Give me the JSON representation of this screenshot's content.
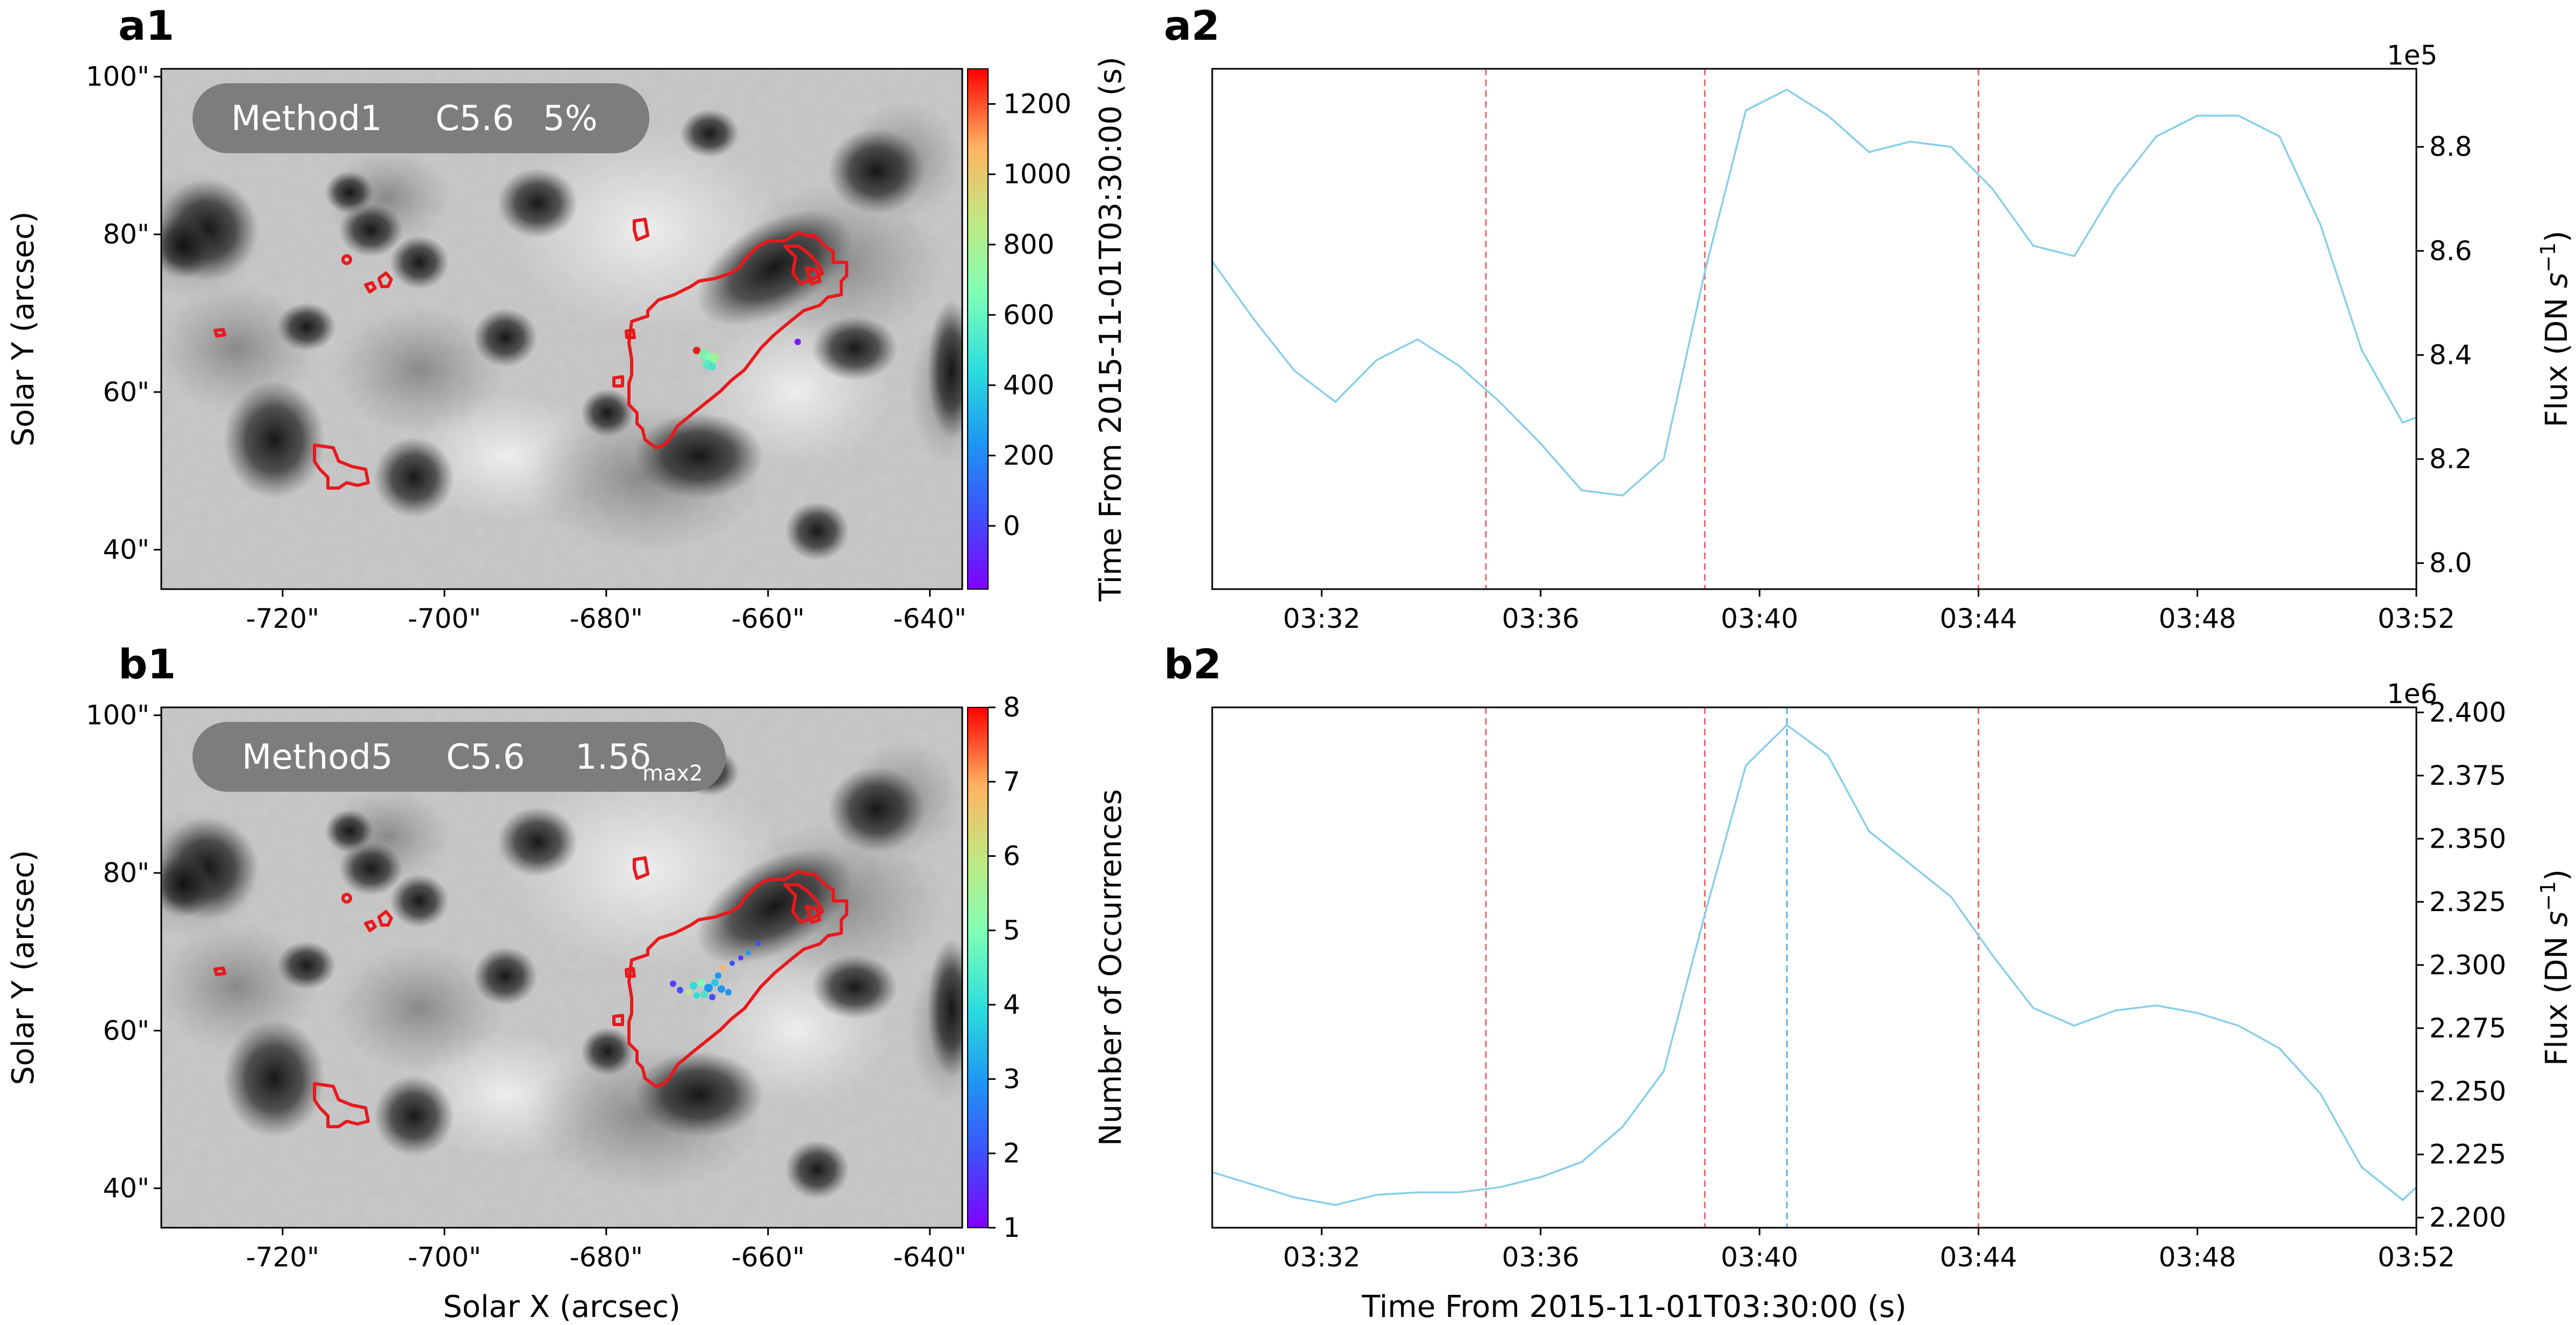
{
  "colors": {
    "curve": "#87ceeb",
    "vline_red": "#e8686a",
    "vline_blue": "#5aaee3",
    "contour": "#e8191d",
    "badge": "#7d7d7d"
  },
  "chart_data": [
    {
      "panel": "a1",
      "type": "image",
      "title_badge": {
        "method": "Method1",
        "flare": "C5.6",
        "threshold": "5%"
      },
      "xlabel": "",
      "ylabel": "Solar Y (arcsec)",
      "xticks": [
        "-720\"",
        "-700\"",
        "-680\"",
        "-660\"",
        "-640\""
      ],
      "yticks": [
        "40\"",
        "60\"",
        "80\"",
        "100\""
      ],
      "xlim": [
        -735,
        -636
      ],
      "ylim": [
        35,
        101
      ],
      "colorbar": {
        "label": "Time From 2015-11-01T03:30:00 (s)",
        "ticks": [
          "0",
          "200",
          "400",
          "600",
          "800",
          "1000",
          "1200"
        ],
        "range": [
          -180,
          1300
        ]
      }
    },
    {
      "panel": "a2",
      "type": "line",
      "xlabel": "",
      "ylabel": "Flux (DN s⁻¹)",
      "exponent": "1e5",
      "x_ticks": [
        "03:32",
        "03:36",
        "03:40",
        "03:44",
        "03:48",
        "03:52"
      ],
      "y_ticks": [
        "8.0",
        "8.2",
        "8.4",
        "8.6",
        "8.8"
      ],
      "xlim_min": [
        0,
        22
      ],
      "ylim": [
        7.95,
        8.95
      ],
      "vlines_red_min": [
        5,
        9,
        14
      ],
      "series": [
        {
          "name": "flux",
          "x_min": [
            0,
            0.75,
            1.5,
            2.25,
            3,
            3.75,
            4.5,
            5.25,
            6,
            6.75,
            7.5,
            8.25,
            9,
            9.75,
            10.5,
            11.25,
            12,
            12.75,
            13.5,
            14.25,
            15,
            15.75,
            16.5,
            17.25,
            18,
            18.75,
            19.5,
            20.25,
            21,
            21.75,
            22
          ],
          "y": [
            8.58,
            8.47,
            8.37,
            8.31,
            8.39,
            8.43,
            8.38,
            8.31,
            8.23,
            8.14,
            8.13,
            8.2,
            8.56,
            8.87,
            8.91,
            8.86,
            8.79,
            8.81,
            8.8,
            8.72,
            8.61,
            8.59,
            8.72,
            8.82,
            8.86,
            8.86,
            8.82,
            8.65,
            8.41,
            8.27,
            8.28
          ]
        }
      ]
    },
    {
      "panel": "b1",
      "type": "image",
      "title_badge": {
        "method": "Method5",
        "flare": "C5.6",
        "threshold_prefix": "1.5δ",
        "threshold_sub": "max2"
      },
      "xlabel": "Solar X (arcsec)",
      "ylabel": "Solar Y (arcsec)",
      "xticks": [
        "-720\"",
        "-700\"",
        "-680\"",
        "-660\"",
        "-640\""
      ],
      "yticks": [
        "40\"",
        "60\"",
        "80\"",
        "100\""
      ],
      "xlim": [
        -735,
        -636
      ],
      "ylim": [
        35,
        101
      ],
      "colorbar": {
        "label": "Number of Occurrences",
        "ticks": [
          "1",
          "2",
          "3",
          "4",
          "5",
          "6",
          "7",
          "8"
        ],
        "range": [
          1,
          8
        ]
      }
    },
    {
      "panel": "b2",
      "type": "line",
      "xlabel": "Time From 2015-11-01T03:30:00 (s)",
      "ylabel": "Flux (DN s⁻¹)",
      "exponent": "1e6",
      "x_ticks": [
        "03:32",
        "03:36",
        "03:40",
        "03:44",
        "03:48",
        "03:52"
      ],
      "y_ticks": [
        "2.200",
        "2.225",
        "2.250",
        "2.275",
        "2.300",
        "2.325",
        "2.350",
        "2.375",
        "2.400"
      ],
      "xlim_min": [
        0,
        22
      ],
      "ylim": [
        2.196,
        2.402
      ],
      "vlines_red_min": [
        5,
        9,
        14
      ],
      "vline_blue_min": 10.5,
      "series": [
        {
          "name": "flux",
          "x_min": [
            0,
            0.75,
            1.5,
            2.25,
            3,
            3.75,
            4.5,
            5.25,
            6,
            6.75,
            7.5,
            8.25,
            9,
            9.75,
            10.5,
            11.25,
            12,
            12.75,
            13.5,
            14.25,
            15,
            15.75,
            16.5,
            17.25,
            18,
            18.75,
            19.5,
            20.25,
            21,
            21.75,
            22
          ],
          "y": [
            2.218,
            2.213,
            2.208,
            2.205,
            2.209,
            2.21,
            2.21,
            2.212,
            2.216,
            2.222,
            2.236,
            2.258,
            2.32,
            2.379,
            2.395,
            2.383,
            2.353,
            2.34,
            2.327,
            2.304,
            2.283,
            2.276,
            2.282,
            2.284,
            2.281,
            2.276,
            2.267,
            2.249,
            2.22,
            2.207,
            2.212
          ]
        }
      ]
    }
  ]
}
